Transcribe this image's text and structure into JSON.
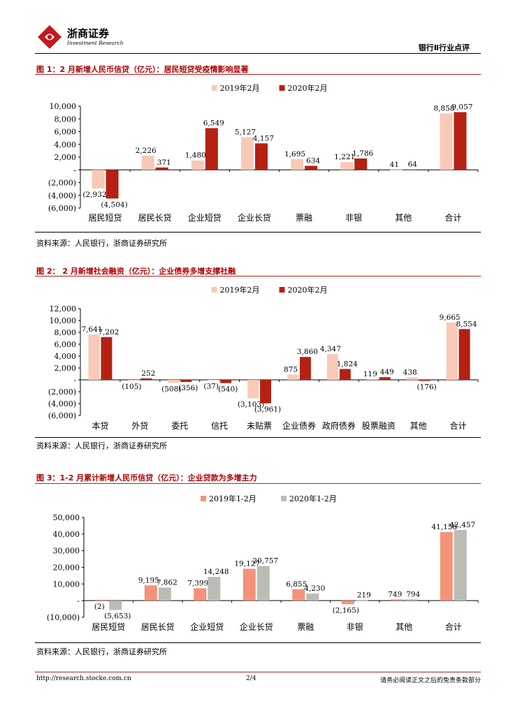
{
  "header": {
    "company_cn": "浙商证券",
    "company_en": "Investment Research",
    "section": "银行Ⅱ行业点评"
  },
  "figures": [
    {
      "title": "图 1：2 月新增人民币信贷（亿元）：居民短贷受疫情影响显著",
      "source": "资料来源：人民银行，浙商证券研究所"
    },
    {
      "title": "图 2： 2 月新增社会融资（亿元）：企业债券多增支撑社融",
      "source": "资料来源：人民银行，浙商证券研究所"
    },
    {
      "title": "图 3：1-2 月累计新增人民币信贷（亿元）：企业贷款为多增主力",
      "source": "资料来源：人民银行，浙商证券研究所"
    }
  ],
  "footer": {
    "url": "http://research.stocke.com.cn",
    "page": "2/4",
    "disclaimer": "请务必阅读正文之后的免责条款部分"
  },
  "colors": {
    "brand_red": "#b00000",
    "light_pink": "#f9c9b8",
    "dark_red": "#b42112",
    "salmon": "#f4937a",
    "gray": "#bbbcb3"
  },
  "chart_data": [
    {
      "type": "bar",
      "categories": [
        "居民短贷",
        "居民长贷",
        "企业短贷",
        "企业长贷",
        "票融",
        "非银",
        "其他",
        "合计"
      ],
      "series": [
        {
          "name": "2019年2月",
          "values": [
            -2932,
            2226,
            1480,
            5127,
            1695,
            1221,
            41,
            8858
          ],
          "labels": [
            "(2,932)",
            "2,226",
            "1,480",
            "5,127",
            "1,695",
            "1,221",
            "41",
            "8,858"
          ],
          "color": "#f9c9b8"
        },
        {
          "name": "2020年2月",
          "values": [
            -4504,
            371,
            6549,
            4157,
            634,
            1786,
            64,
            9057
          ],
          "labels": [
            "(4,504)",
            "371",
            "6,549",
            "4,157",
            "634",
            "1,786",
            "64",
            "9,057"
          ],
          "color": "#b42112"
        }
      ],
      "ylim": [
        -6000,
        10000
      ],
      "yticks": [
        10000,
        8000,
        6000,
        4000,
        2000,
        0,
        -2000,
        -4000,
        -6000
      ],
      "ytick_labels": [
        "10,000",
        "8,000",
        "6,000",
        "4,000",
        "2,000",
        "-",
        "(2,000)",
        "(4,000)",
        "(6,000)"
      ],
      "legend": "top"
    },
    {
      "type": "bar",
      "categories": [
        "本贷",
        "外贷",
        "委托",
        "信托",
        "未贴票",
        "企业债券",
        "政府债券",
        "股票融资",
        "其他",
        "合计"
      ],
      "series": [
        {
          "name": "2019年2月",
          "values": [
            7641,
            -105,
            -508,
            -37,
            -3103,
            875,
            4347,
            119,
            438,
            9665
          ],
          "labels": [
            "7,641",
            "(105)",
            "(508)",
            "(37)",
            "(3,103)",
            "875",
            "4,347",
            "119",
            "438",
            "9,665"
          ],
          "color": "#f9c9b8"
        },
        {
          "name": "2020年2月",
          "values": [
            7202,
            252,
            -356,
            -540,
            -3961,
            3860,
            1824,
            449,
            -176,
            8554
          ],
          "labels": [
            "7,202",
            "252",
            "(356)",
            "(540)",
            "(3,961)",
            "3,860",
            "1,824",
            "449",
            "(176)",
            "8,554"
          ],
          "color": "#b42112"
        }
      ],
      "ylim": [
        -6000,
        12000
      ],
      "yticks": [
        12000,
        10000,
        8000,
        6000,
        4000,
        2000,
        0,
        -2000,
        -4000,
        -6000
      ],
      "ytick_labels": [
        "12,000",
        "10,000",
        "8,000",
        "6,000",
        "4,000",
        "2,000",
        "-",
        "(2,000)",
        "(4,000)",
        "(6,000)"
      ],
      "legend": "top"
    },
    {
      "type": "bar",
      "categories": [
        "居民短贷",
        "居民长贷",
        "企业短贷",
        "企业长贷",
        "票融",
        "非银",
        "其他",
        "合计"
      ],
      "series": [
        {
          "name": "2019年1-2月",
          "values": [
            -2,
            9195,
            7399,
            19127,
            6855,
            -2165,
            749,
            41158
          ],
          "labels": [
            "(2)",
            "9,195",
            "7,399",
            "19,127",
            "6,855",
            "(2,165)",
            "749",
            "41,158"
          ],
          "color": "#f4937a"
        },
        {
          "name": "2020年1-2月",
          "values": [
            -5653,
            7862,
            14248,
            20757,
            4230,
            219,
            794,
            42457
          ],
          "labels": [
            "(5,653)",
            "7,862",
            "14,248",
            "20,757",
            "4,230",
            "219",
            "794",
            "42,457"
          ],
          "color": "#bbbcb3"
        }
      ],
      "ylim": [
        -10000,
        50000
      ],
      "yticks": [
        50000,
        40000,
        30000,
        20000,
        10000,
        0,
        -10000
      ],
      "ytick_labels": [
        "50,000",
        "40,000",
        "30,000",
        "20,000",
        "10,000",
        "-",
        "(10,000)"
      ],
      "legend": "top"
    }
  ]
}
